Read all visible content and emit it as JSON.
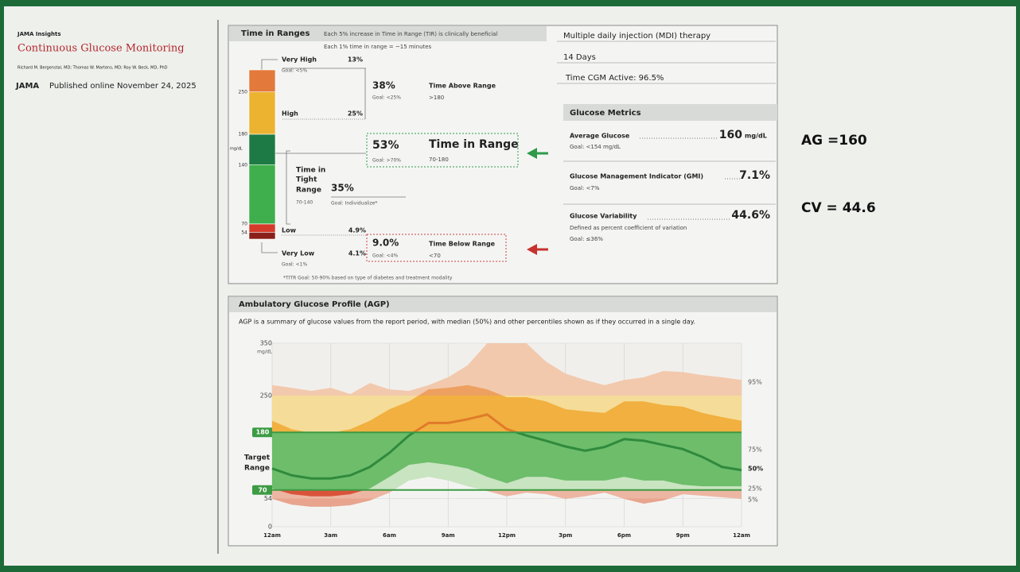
{
  "sidebar": {
    "series": "JAMA Insights",
    "title": "Continuous Glucose Monitoring",
    "authors": "Richard M. Bergenstal, MD; Thomas W. Martens, MD; Roy W. Beck, MD, PhD",
    "journal": "JAMA",
    "published": "Published online November 24, 2025"
  },
  "time_in_ranges": {
    "title": "Time in Ranges",
    "note": "Each 5% increase in Time in Range (TIR) is clinically beneficial",
    "subnote": "Each 1% time in range = ~15 minutes",
    "unit": "mg/dL",
    "thresholds": [
      "250",
      "180",
      "140",
      "70",
      "54"
    ],
    "very_high": {
      "name": "Very High",
      "value": 13,
      "label": "13%",
      "goal": "Goal: <5%",
      "color": "#e3793a"
    },
    "high": {
      "name": "High",
      "value": 25,
      "label": "25%",
      "color": "#ecb331"
    },
    "in_range": {
      "name": "Time in Range",
      "value": 53,
      "label": "53%",
      "goal": "Goal: >70%",
      "range": "70-180",
      "color": "#1e7a44"
    },
    "tight": {
      "name": [
        "Time in",
        "Tight",
        "Range"
      ],
      "value": 35,
      "label": "35%",
      "range": "70-140",
      "goal": "Goal: Individualize*",
      "color": "#3fae4c"
    },
    "low": {
      "name": "Low",
      "value": 4.9,
      "label": "4.9%",
      "color": "#d63a2a"
    },
    "very_low": {
      "name": "Very Low",
      "value": 4.1,
      "label": "4.1%",
      "goal": "Goal: <1%",
      "color": "#8a1f1a"
    },
    "above": {
      "label": "38%",
      "name": "Time Above Range",
      "goal": "Goal: <25%",
      "range": ">180"
    },
    "below": {
      "label": "9.0%",
      "name": "Time Below Range",
      "goal": "Goal: <4%",
      "range": "<70"
    },
    "footnote": "*TITR Goal: 50-90% based on type of diabetes and treatment modality"
  },
  "therapy": {
    "therapy": "Multiple daily injection (MDI) therapy",
    "days": "14 Days",
    "cgm_active": "Time CGM Active: 96.5%"
  },
  "glucose_metrics": {
    "title": "Glucose Metrics",
    "items": [
      {
        "name": "Average Glucose",
        "value": "160",
        "unit": "mg/dL",
        "goal": "Goal: <154 mg/dL"
      },
      {
        "name": "Glucose Management Indicator (GMI)",
        "value": "7.1%",
        "goal": "Goal: <7%"
      },
      {
        "name": "Glucose Variability",
        "value": "44.6%",
        "desc": "Defined as percent coefficient of variation",
        "goal": "Goal: ≤36%"
      }
    ]
  },
  "annotations": [
    "AG =160",
    "CV = 44.6"
  ],
  "chart_data": {
    "type": "area",
    "title": "Ambulatory Glucose Profile (AGP)",
    "subtitle": "AGP is a summary of glucose values from the report period, with median (50%) and other percentiles shown as if they occurred in a single day.",
    "ylabel": "mg/dL",
    "x": [
      0,
      1,
      2,
      3,
      4,
      5,
      6,
      7,
      8,
      9,
      10,
      11,
      12,
      13,
      14,
      15,
      16,
      17,
      18,
      19,
      20,
      21,
      22,
      23,
      24
    ],
    "xlim": [
      0,
      24
    ],
    "xticks": [
      {
        "value": 0,
        "label": "12am"
      },
      {
        "value": 3,
        "label": "3am"
      },
      {
        "value": 6,
        "label": "6am"
      },
      {
        "value": 9,
        "label": "9am"
      },
      {
        "value": 12,
        "label": "12pm"
      },
      {
        "value": 15,
        "label": "3pm"
      },
      {
        "value": 18,
        "label": "6pm"
      },
      {
        "value": 21,
        "label": "9pm"
      },
      {
        "value": 24,
        "label": "12am"
      }
    ],
    "ylim": [
      0,
      350
    ],
    "yticks": [
      0,
      54,
      70,
      180,
      250,
      350
    ],
    "target_range": [
      70,
      180
    ],
    "target_range_label": [
      "Target",
      "Range"
    ],
    "target_color": "#3d9b44",
    "grid": true,
    "background_colors": [
      "#f3f4f2",
      "#f3f4f2",
      "#f3f4f2",
      "#f6efcc",
      "#f1efec"
    ],
    "outer_colors": [
      "#e8a48e",
      "#edb6a2",
      "#c9e4c1",
      "#f5dc98",
      "#f2c9ad"
    ],
    "inner_colors": [
      "#c3392b",
      "#d9533a",
      "#6dbd6b",
      "#f1b03f",
      "#eda060"
    ],
    "median_colors": [
      "#2f8a3c",
      "#2f8a3c",
      "#2f8a3c",
      "#e07b2a",
      "#e07b2a"
    ],
    "series": [
      {
        "name": "95%",
        "values": [
          270,
          265,
          259,
          265,
          253,
          274,
          262,
          259,
          270,
          285,
          308,
          350,
          350,
          350,
          315,
          292,
          280,
          270,
          280,
          285,
          297,
          295,
          289,
          285,
          280
        ]
      },
      {
        "name": "75%",
        "values": [
          202,
          186,
          179,
          179,
          186,
          202,
          224,
          239,
          262,
          265,
          270,
          262,
          247,
          247,
          239,
          224,
          220,
          217,
          239,
          239,
          232,
          229,
          217,
          209,
          202
        ]
      },
      {
        "name": "50%",
        "values": [
          111,
          98,
          92,
          92,
          98,
          114,
          141,
          174,
          198,
          198,
          205,
          214,
          186,
          174,
          164,
          153,
          145,
          152,
          167,
          164,
          156,
          148,
          133,
          114,
          108
        ]
      },
      {
        "name": "25%",
        "values": [
          73,
          62,
          58,
          58,
          62,
          73,
          95,
          118,
          123,
          118,
          111,
          95,
          83,
          95,
          95,
          88,
          88,
          88,
          95,
          88,
          88,
          80,
          77,
          77,
          77
        ]
      },
      {
        "name": "5%",
        "values": [
          53,
          42,
          38,
          38,
          41,
          50,
          65,
          88,
          95,
          88,
          77,
          68,
          58,
          65,
          62,
          53,
          58,
          65,
          53,
          44,
          50,
          62,
          59,
          56,
          53
        ]
      }
    ]
  }
}
